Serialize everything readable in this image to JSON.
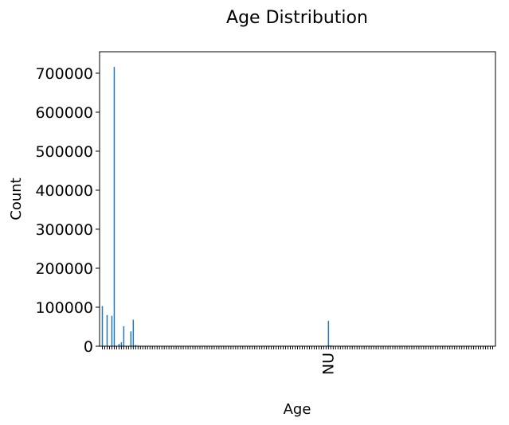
{
  "chart_data": {
    "type": "bar",
    "title": "Age Distribution",
    "xlabel": "Age",
    "ylabel": "Count",
    "ylim": [
      0,
      755000
    ],
    "yticks": [
      0,
      100000,
      200000,
      300000,
      400000,
      500000,
      600000,
      700000
    ],
    "ytick_labels": [
      "0",
      "100000",
      "200000",
      "300000",
      "400000",
      "500000",
      "600000",
      "700000"
    ],
    "bar_color": "#1f77b4",
    "category_count": 165,
    "labeled_categories": {
      "NU": 95
    },
    "values": [
      103000,
      0,
      80000,
      0,
      78000,
      716000,
      0,
      6000,
      10000,
      51000,
      0,
      0,
      38000,
      68000,
      3000,
      1500,
      1200,
      1000,
      1000,
      900,
      800,
      800,
      700,
      700,
      700,
      600,
      600,
      600,
      500,
      500,
      500,
      500,
      400,
      400,
      400,
      400,
      400,
      350,
      350,
      350,
      300,
      300,
      300,
      300,
      300,
      300,
      250,
      250,
      250,
      250,
      250,
      250,
      200,
      200,
      200,
      200,
      200,
      200,
      200,
      200,
      200,
      200,
      200,
      200,
      200,
      200,
      200,
      200,
      200,
      200,
      200,
      200,
      200,
      200,
      200,
      200,
      200,
      200,
      200,
      200,
      200,
      200,
      200,
      200,
      200,
      200,
      200,
      200,
      200,
      200,
      200,
      200,
      200,
      200,
      200,
      65000,
      2000,
      1000,
      800,
      600,
      500,
      400,
      400,
      300,
      300,
      300,
      300,
      300,
      250,
      250,
      250,
      250,
      250,
      250,
      250,
      250,
      200,
      200,
      200,
      200,
      200,
      200,
      200,
      200,
      200,
      200,
      200,
      200,
      200,
      200,
      200,
      200,
      200,
      200,
      200,
      200,
      200,
      200,
      200,
      200,
      200,
      200,
      200,
      200,
      200,
      200,
      200,
      200,
      200,
      200,
      200,
      200,
      200,
      200,
      200,
      200,
      200,
      200,
      200,
      200,
      200,
      200,
      200,
      200,
      200
    ],
    "grid": false,
    "legend": "none"
  }
}
